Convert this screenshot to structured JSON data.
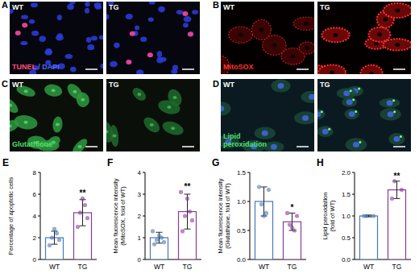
{
  "panels": [
    {
      "label": "A",
      "images": [
        "WT",
        "TG"
      ],
      "stain": [
        {
          "text": "TUNEL",
          "color": "#ff4f7a"
        },
        {
          "text": " / DAPI",
          "color": "#4f6bff"
        }
      ]
    },
    {
      "label": "B",
      "images": [
        "WT",
        "TG"
      ],
      "stain": [
        {
          "text": "MitoSOX",
          "color": "#ff3030"
        }
      ]
    },
    {
      "label": "C",
      "images": [
        "WT",
        "TG"
      ],
      "stain": [
        {
          "text": "Glutathione",
          "color": "#4ee06a"
        }
      ]
    },
    {
      "label": "D",
      "images": [
        "WT",
        "TG"
      ],
      "stain": [
        {
          "text": "Lipid\nperoxidation",
          "color": "#4ee06a"
        }
      ]
    }
  ],
  "chart_data": [
    {
      "type": "bar",
      "title": "E",
      "y_label": "Percentage of apoptotic cells",
      "categories": [
        "WT",
        "TG"
      ],
      "values": [
        2.0,
        4.3
      ],
      "errors": [
        0.6,
        1.2
      ],
      "points": [
        [
          1.3,
          1.8,
          2.0,
          2.4,
          2.8
        ],
        [
          3.0,
          3.8,
          4.3,
          5.0,
          5.6
        ]
      ],
      "colors": [
        "#4a78b5",
        "#8b3a9c"
      ],
      "annotations": [
        "",
        "**"
      ],
      "ylim": [
        0,
        8
      ],
      "yticks": [
        0,
        2,
        4,
        6,
        8
      ]
    },
    {
      "type": "bar",
      "title": "F",
      "y_label": "Mean fluorescence intensity\n(MitoSOX, fold of WT)",
      "categories": [
        "WT",
        "TG"
      ],
      "values": [
        1.0,
        2.2
      ],
      "errors": [
        0.25,
        0.8
      ],
      "points": [
        [
          0.7,
          0.8,
          0.9,
          1.0,
          1.1,
          1.3
        ],
        [
          1.3,
          1.8,
          2.0,
          2.2,
          2.8,
          3.1
        ]
      ],
      "colors": [
        "#4a78b5",
        "#8b3a9c"
      ],
      "annotations": [
        "",
        "**"
      ],
      "ylim": [
        0,
        4
      ],
      "yticks": [
        0,
        1,
        2,
        3,
        4
      ]
    },
    {
      "type": "bar",
      "title": "G",
      "y_label": "Mean fluorescence intensity\n(Glutathione, fold of WT)",
      "categories": [
        "WT",
        "TG"
      ],
      "values": [
        1.0,
        0.65
      ],
      "errors": [
        0.25,
        0.15
      ],
      "points": [
        [
          1.25,
          1.2,
          0.95,
          0.8,
          0.75
        ],
        [
          0.8,
          0.75,
          0.6,
          0.5,
          0.55
        ]
      ],
      "colors": [
        "#4a78b5",
        "#8b3a9c"
      ],
      "annotations": [
        "",
        "*"
      ],
      "ylim": [
        0,
        1.5
      ],
      "yticks": [
        {
          "value": 0,
          "label": "0.0"
        },
        {
          "value": 0.5,
          "label": "0.5"
        },
        {
          "value": 1.0,
          "label": "1.0"
        },
        {
          "value": 1.5,
          "label": "1.5"
        }
      ]
    },
    {
      "type": "bar",
      "title": "H",
      "y_label": "Lipid peroxidation\n(fold of WT)",
      "categories": [
        "WT",
        "TG"
      ],
      "values": [
        1.0,
        1.6
      ],
      "errors": [
        0.02,
        0.2
      ],
      "points": [
        [
          1.0,
          1.0,
          1.0
        ],
        [
          1.4,
          1.6,
          1.8
        ]
      ],
      "colors": [
        "#4a78b5",
        "#8b3a9c"
      ],
      "annotations": [
        "",
        "**"
      ],
      "ylim": [
        0,
        2.0
      ],
      "yticks": [
        {
          "value": 0,
          "label": "0.0"
        },
        {
          "value": 0.5,
          "label": "0.5"
        },
        {
          "value": 1.0,
          "label": "1.0"
        },
        {
          "value": 1.5,
          "label": "1.5"
        },
        {
          "value": 2.0,
          "label": "2.0"
        }
      ]
    }
  ]
}
